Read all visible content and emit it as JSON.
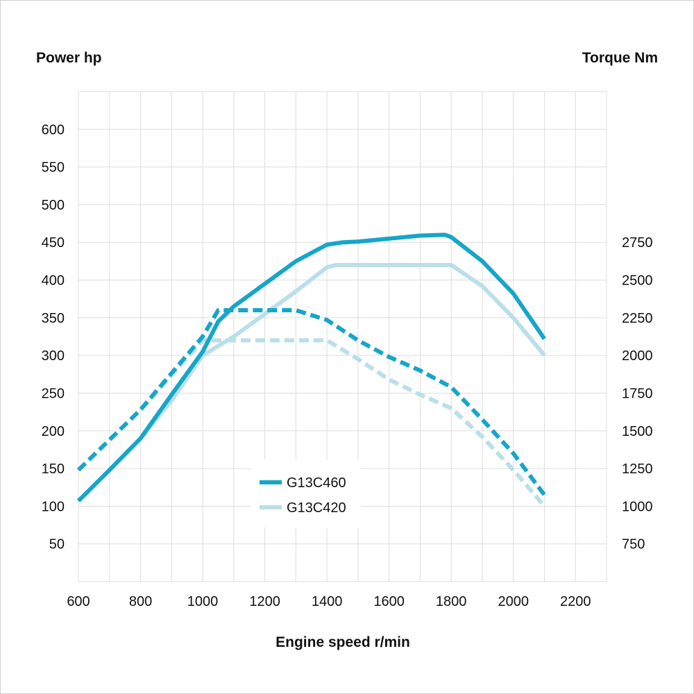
{
  "chart_data": {
    "type": "line",
    "y_left_label": "Power hp",
    "y_right_label": "Torque Nm",
    "xlabel": "Engine speed r/min",
    "xlim": [
      600,
      2300
    ],
    "ylim_left": [
      0,
      650
    ],
    "ylim_right": [
      500,
      3750
    ],
    "x_ticks": [
      600,
      800,
      1000,
      1200,
      1400,
      1600,
      1800,
      2000,
      2200
    ],
    "y_left_ticks": [
      50,
      100,
      150,
      200,
      250,
      300,
      350,
      400,
      450,
      500,
      550,
      600
    ],
    "y_right_ticks": [
      750,
      1000,
      1250,
      1500,
      1750,
      2000,
      2250,
      2500,
      2750
    ],
    "grid": true,
    "legend_placement": "bottom-center",
    "legend": [
      "G13C460",
      "G13C420"
    ],
    "colors": {
      "G13C460": "#16a6c9",
      "G13C420": "#badfe8",
      "grid": "#dddddd"
    },
    "series": [
      {
        "name": "G13C460",
        "quantity": "power_hp",
        "style": "solid",
        "x": [
          600,
          700,
          800,
          900,
          1000,
          1050,
          1100,
          1200,
          1300,
          1400,
          1450,
          1500,
          1600,
          1700,
          1780,
          1800,
          1900,
          2000,
          2100
        ],
        "y": [
          107,
          148,
          190,
          248,
          305,
          345,
          365,
          395,
          425,
          447,
          450,
          451,
          455,
          459,
          460,
          457,
          425,
          382,
          322
        ]
      },
      {
        "name": "G13C420",
        "quantity": "power_hp",
        "style": "solid",
        "x": [
          800,
          900,
          1000,
          1100,
          1200,
          1300,
          1400,
          1430,
          1800,
          1900,
          2000,
          2100
        ],
        "y": [
          190,
          240,
          300,
          325,
          355,
          385,
          417,
          420,
          420,
          392,
          350,
          300
        ]
      },
      {
        "name": "G13C460",
        "quantity": "torque_nm",
        "style": "dashed",
        "x": [
          600,
          800,
          1000,
          1050,
          1300,
          1400,
          1500,
          1600,
          1700,
          1800,
          1900,
          2000,
          2100
        ],
        "y": [
          1240,
          1640,
          2125,
          2300,
          2300,
          2235,
          2100,
          1990,
          1900,
          1790,
          1575,
          1350,
          1075
        ]
      },
      {
        "name": "G13C420",
        "quantity": "torque_nm",
        "style": "dashed",
        "x": [
          800,
          1000,
          1400,
          1500,
          1600,
          1700,
          1800,
          1900,
          2000,
          2100
        ],
        "y": [
          1640,
          2100,
          2100,
          1975,
          1840,
          1740,
          1650,
          1460,
          1240,
          1000
        ]
      }
    ]
  }
}
